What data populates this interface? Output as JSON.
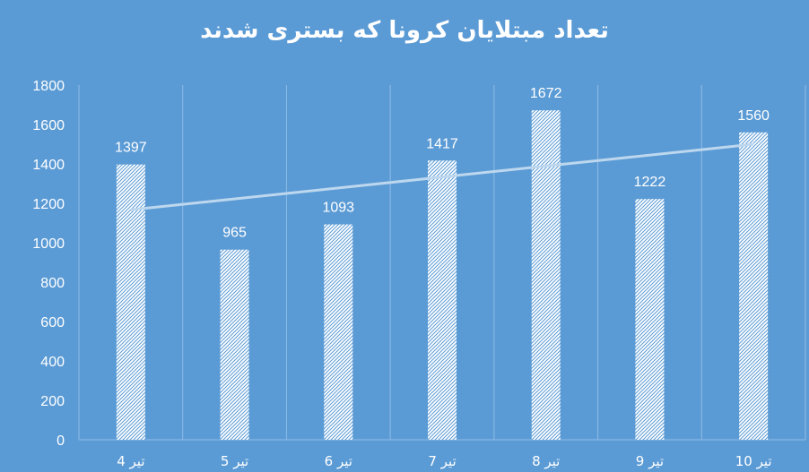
{
  "chart_data": {
    "type": "bar",
    "title": "تعداد مبتلایان کرونا که بستری شدند",
    "categories": [
      "4 تیر",
      "5 تیر",
      "6 تیر",
      "7 تیر",
      "8 تیر",
      "9 تیر",
      "10 تیر"
    ],
    "values": [
      1397,
      965,
      1093,
      1417,
      1672,
      1222,
      1560
    ],
    "ylim": [
      0,
      1800
    ],
    "yticks": [
      "0",
      "200",
      "400",
      "600",
      "800",
      "1000",
      "1200",
      "1400",
      "1600",
      "1800"
    ],
    "grid": "vertical category separators",
    "trendline": {
      "type": "linear",
      "start_value": 1167,
      "end_value": 1500
    },
    "data_labels": true,
    "colors": {
      "background": "#5b9bd5",
      "bar_fill": "#ffffff",
      "trendline": "#bdd7ee",
      "grid": "#8fbbe6"
    }
  }
}
